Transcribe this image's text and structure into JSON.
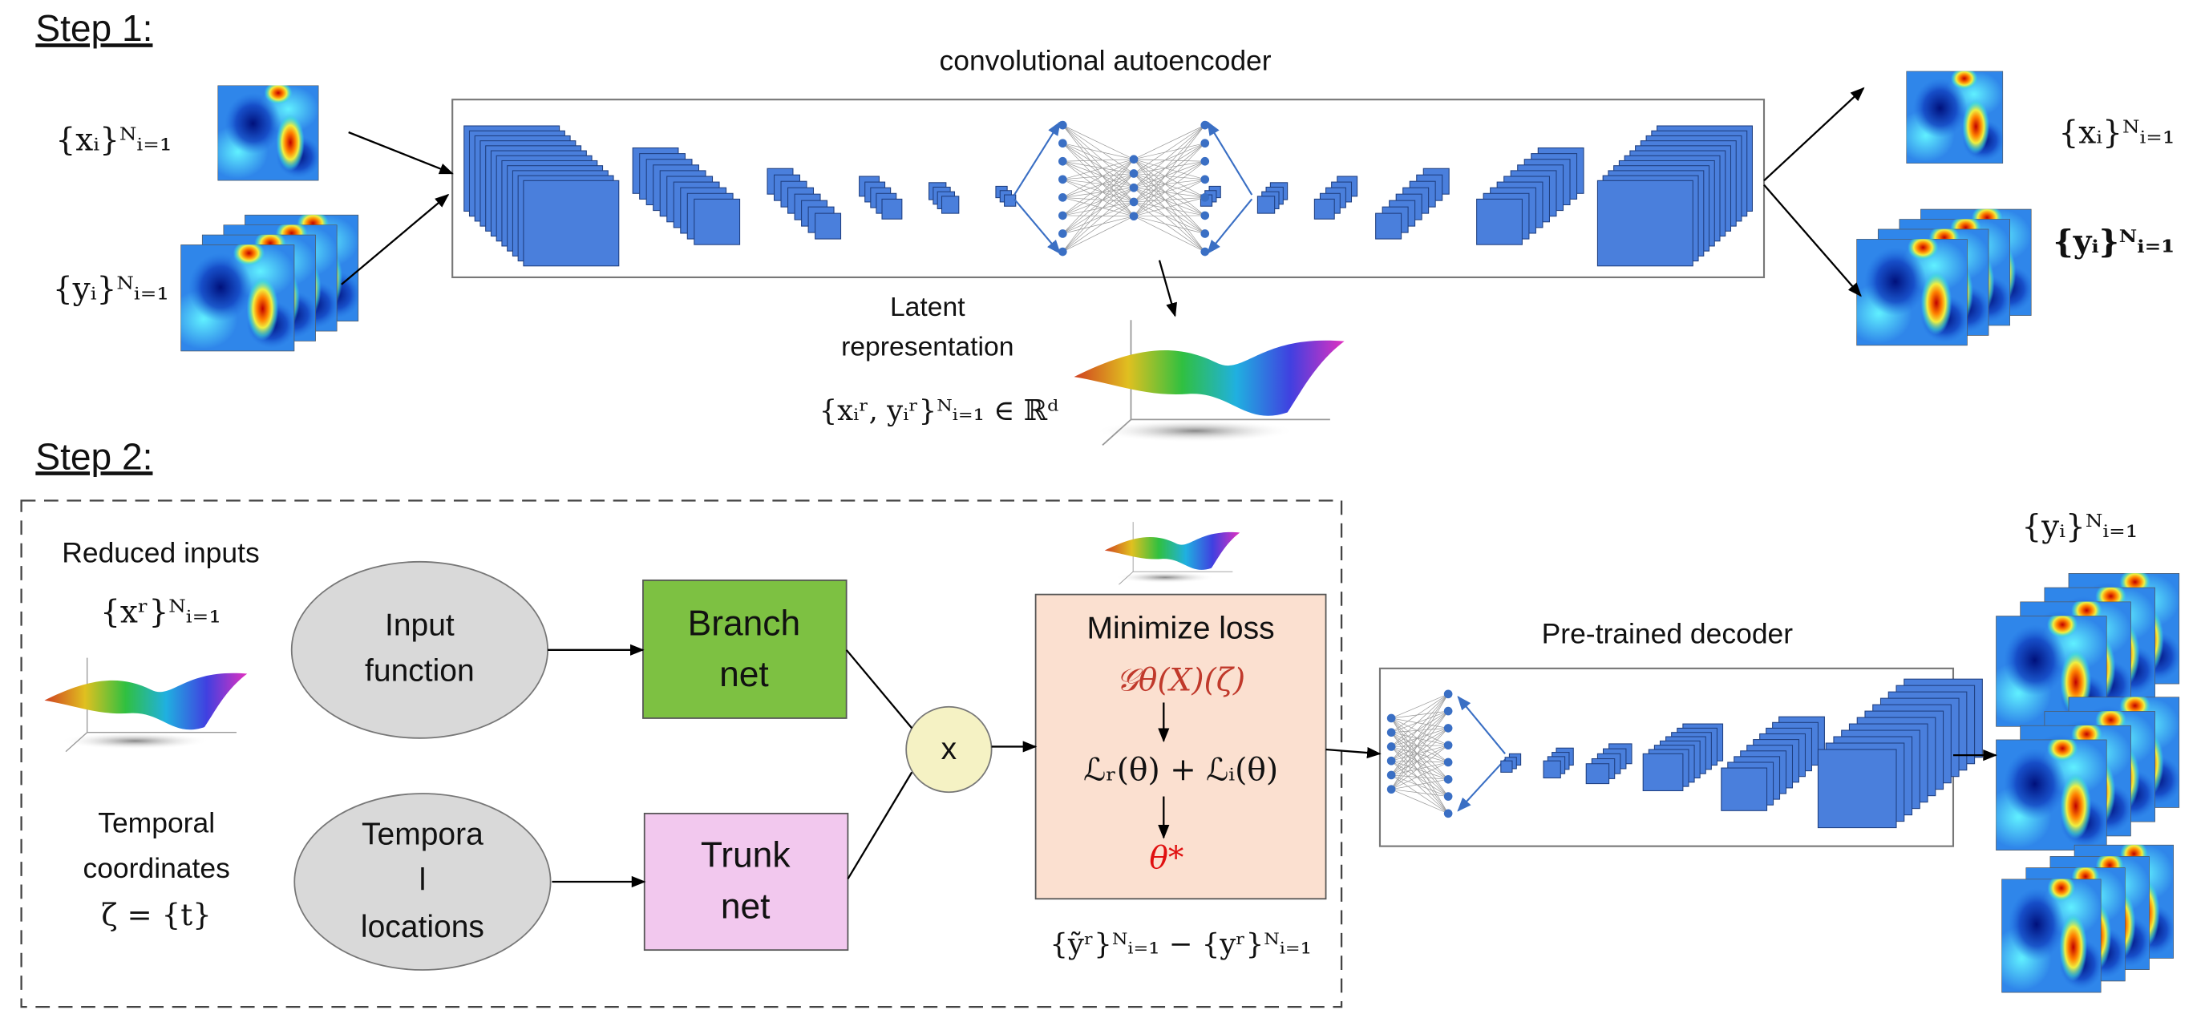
{
  "step1": {
    "heading": "Step 1:",
    "autoencoder_title": "convolutional autoencoder",
    "input_x": "{xᵢ}ᴺᵢ₌₁",
    "input_y": "{yᵢ}ᴺᵢ₌₁",
    "output_x": "{xᵢ}ᴺᵢ₌₁",
    "output_y": "{yᵢ}ᴺᵢ₌₁",
    "latent_label": [
      "Latent",
      "representation"
    ],
    "latent_formula": "{xᵢʳ, yᵢʳ}ᴺᵢ₌₁ ∈ ℝᵈ"
  },
  "step2": {
    "heading": "Step 2:",
    "reduced_inputs": "Reduced inputs",
    "reduced_formula": "{xʳ}ᴺᵢ₌₁",
    "temporal": [
      "Temporal",
      "coordinates",
      "ζ = {t}"
    ],
    "input_function": [
      "Input",
      "function"
    ],
    "temporal_locations": [
      "Tempora",
      "l",
      "locations"
    ],
    "branch_net": [
      "Branch",
      "net"
    ],
    "trunk_net": [
      "Trunk",
      "net"
    ],
    "product": "x",
    "loss": {
      "title": "Minimize loss",
      "operator": "𝒢θ(X)(ζ)",
      "terms": "ℒᵣ(θ) + ℒᵢ(θ)",
      "optimum": "θ*"
    },
    "loss_formula": "{ỹʳ}ᴺᵢ₌₁ − {yʳ}ᴺᵢ₌₁",
    "decoder_title": "Pre-trained decoder",
    "output_y": "{yᵢ}ᴺᵢ₌₁"
  }
}
